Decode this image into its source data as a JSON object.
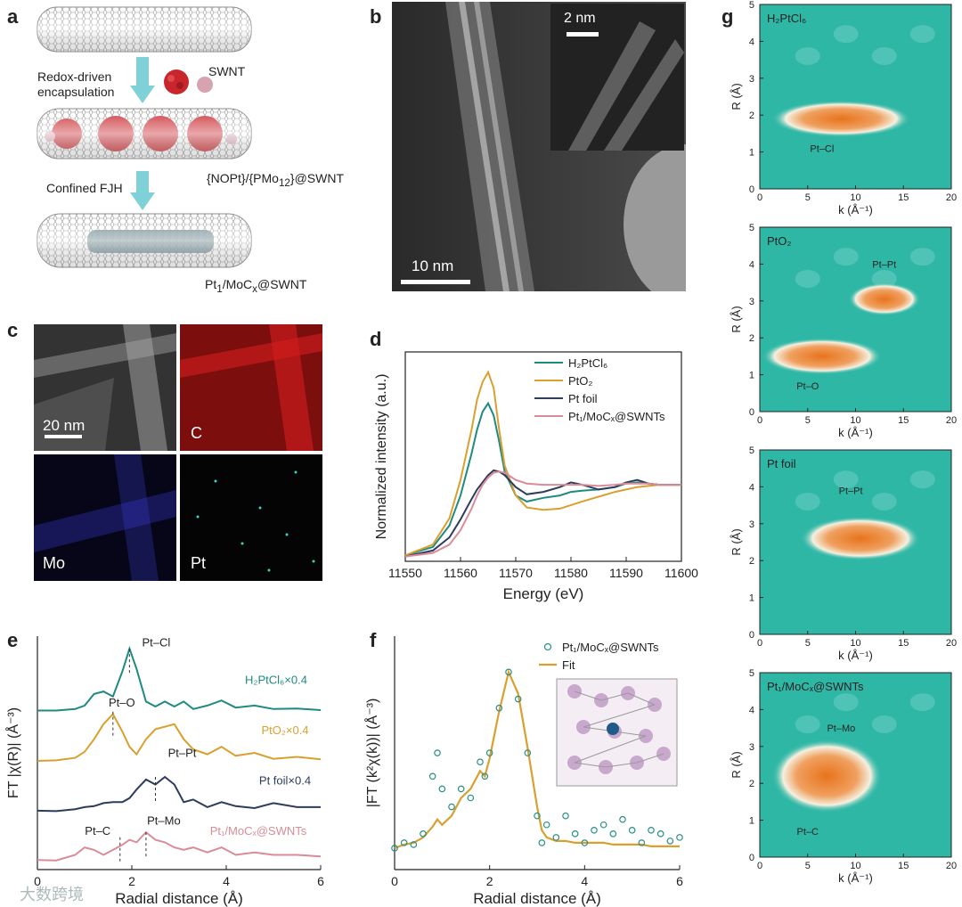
{
  "panel_labels": {
    "a": "a",
    "b": "b",
    "c": "c",
    "d": "d",
    "e": "e",
    "f": "f",
    "g": "g"
  },
  "colors": {
    "teal": "#1f8a80",
    "orange": "#d9a030",
    "navy": "#2d3c5c",
    "pink": "#d98c98",
    "heat_bg": "#2fb7a6",
    "heat_hot": "#e8731c"
  },
  "panel_a": {
    "step1": "Redox-driven\nencapsulation",
    "swnt_label": "SWNT",
    "mid_label": "{NOPt}/{PMo12}@SWNT",
    "step2": "Confined FJH",
    "final_label": "Pt1/MoCx@SWNT"
  },
  "panel_b": {
    "scale_main": "10 nm",
    "scale_inset": "2 nm"
  },
  "panel_c": {
    "scale": "20 nm",
    "maps": [
      "C",
      "Mo",
      "Pt"
    ]
  },
  "watermark": "大数跨境",
  "chart_data": [
    {
      "id": "d",
      "type": "line",
      "title": "",
      "xlabel": "Energy (eV)",
      "ylabel": "Normalized intensity (a.u.)",
      "xlim": [
        11550,
        11600
      ],
      "xticks": [
        11550,
        11560,
        11570,
        11580,
        11590,
        11600
      ],
      "x": [
        11550,
        11555,
        11558,
        11560,
        11562,
        11563,
        11564,
        11565,
        11566,
        11567,
        11568,
        11570,
        11572,
        11575,
        11578,
        11580,
        11582,
        11585,
        11588,
        11590,
        11592,
        11594,
        11596,
        11600
      ],
      "series": [
        {
          "name": "H2PtCl6",
          "legend": "H₂PtCl₆",
          "color": "#1f8a80",
          "values": [
            0.05,
            0.12,
            0.3,
            0.55,
            0.9,
            1.1,
            1.25,
            1.32,
            1.22,
            1.0,
            0.75,
            0.55,
            0.5,
            0.53,
            0.55,
            0.58,
            0.59,
            0.6,
            0.62,
            0.65,
            0.66,
            0.65,
            0.64,
            0.64
          ]
        },
        {
          "name": "PtO2",
          "legend": "PtO₂",
          "color": "#d9a030",
          "values": [
            0.05,
            0.14,
            0.36,
            0.68,
            1.1,
            1.35,
            1.5,
            1.58,
            1.45,
            1.1,
            0.8,
            0.55,
            0.45,
            0.43,
            0.44,
            0.47,
            0.5,
            0.54,
            0.58,
            0.6,
            0.62,
            0.63,
            0.64,
            0.64
          ]
        },
        {
          "name": "Pt foil",
          "legend": "Pt foil",
          "color": "#2d3c5c",
          "values": [
            0.04,
            0.09,
            0.2,
            0.35,
            0.52,
            0.6,
            0.66,
            0.72,
            0.76,
            0.75,
            0.72,
            0.62,
            0.56,
            0.58,
            0.62,
            0.66,
            0.64,
            0.6,
            0.62,
            0.66,
            0.68,
            0.65,
            0.64,
            0.64
          ]
        },
        {
          "name": "Pt1/MoCx@SWNTs",
          "legend": "Pt₁/MoCₓ@SWNTs",
          "color": "#d98c98",
          "values": [
            0.04,
            0.07,
            0.14,
            0.26,
            0.44,
            0.55,
            0.64,
            0.7,
            0.74,
            0.75,
            0.74,
            0.68,
            0.65,
            0.64,
            0.64,
            0.64,
            0.64,
            0.63,
            0.64,
            0.65,
            0.65,
            0.65,
            0.64,
            0.64
          ]
        }
      ]
    },
    {
      "id": "e",
      "type": "line",
      "xlabel": "Radial distance (Å)",
      "ylabel": "FT |χ(R)| (Å⁻³)",
      "xlim": [
        0,
        6
      ],
      "xticks": [
        0,
        2,
        4,
        6
      ],
      "x": [
        0,
        0.4,
        0.8,
        1.0,
        1.2,
        1.4,
        1.6,
        1.8,
        1.95,
        2.1,
        2.3,
        2.5,
        2.7,
        2.9,
        3.1,
        3.3,
        3.6,
        3.9,
        4.2,
        4.6,
        5.0,
        5.5,
        6.0
      ],
      "series": [
        {
          "name": "H2PtCl6×0.4",
          "legend": "H₂PtCl₆×0.4",
          "color": "#1f8a80",
          "offset": 3.0,
          "values": [
            0.02,
            0.02,
            0.05,
            0.12,
            0.35,
            0.4,
            0.3,
            0.8,
            1.25,
            0.85,
            0.2,
            0.1,
            0.2,
            0.1,
            0.2,
            0.05,
            0.12,
            0.22,
            0.08,
            0.12,
            0.05,
            0.06,
            0.03
          ]
        },
        {
          "name": "PtO2×0.4",
          "legend": "PtO₂×0.4",
          "color": "#d9a030",
          "offset": 2.0,
          "values": [
            0.02,
            0.03,
            0.08,
            0.2,
            0.45,
            0.75,
            0.95,
            0.6,
            0.3,
            0.15,
            0.45,
            0.65,
            0.7,
            0.75,
            0.45,
            0.25,
            0.15,
            0.3,
            0.12,
            0.18,
            0.06,
            0.1,
            0.05
          ]
        },
        {
          "name": "Pt foil×0.4",
          "legend": "Pt foil×0.4",
          "color": "#2d3c5c",
          "offset": 1.0,
          "values": [
            0.03,
            0.02,
            0.06,
            0.1,
            0.12,
            0.18,
            0.2,
            0.2,
            0.28,
            0.45,
            0.65,
            0.55,
            0.7,
            0.55,
            0.2,
            0.25,
            0.1,
            0.2,
            0.12,
            0.08,
            0.18,
            0.1,
            0.1
          ]
        },
        {
          "name": "Pt1/MoCx@SWNTs",
          "legend": "Pt₁/MoCₓ@SWNTs",
          "color": "#d98c98",
          "offset": 0.0,
          "values": [
            0.05,
            0.04,
            0.15,
            0.3,
            0.25,
            0.15,
            0.25,
            0.35,
            0.45,
            0.4,
            0.6,
            0.45,
            0.4,
            0.3,
            0.25,
            0.3,
            0.2,
            0.3,
            0.15,
            0.2,
            0.15,
            0.15,
            0.12
          ]
        }
      ],
      "annotations": [
        {
          "text": "Pt–Cl",
          "x": 1.95
        },
        {
          "text": "Pt–O",
          "x": 1.6
        },
        {
          "text": "Pt–Pt",
          "x": 2.5
        },
        {
          "text": "Pt–C",
          "x": 1.75
        },
        {
          "text": "Pt–Mo",
          "x": 2.3
        }
      ]
    },
    {
      "id": "f",
      "type": "scatter",
      "xlabel": "Radial distance (Å)",
      "ylabel": "|FT (k²χ(k))| (Å⁻³)",
      "xlim": [
        0,
        6
      ],
      "xticks": [
        0,
        2,
        4,
        6
      ],
      "legend": [
        "Pt₁/MoCₓ@SWNTs",
        "Fit"
      ],
      "x": [
        0,
        0.2,
        0.4,
        0.6,
        0.8,
        0.9,
        1.0,
        1.2,
        1.4,
        1.6,
        1.8,
        1.9,
        2.0,
        2.2,
        2.4,
        2.6,
        2.8,
        3.0,
        3.1,
        3.2,
        3.4,
        3.6,
        3.8,
        4.0,
        4.2,
        4.4,
        4.6,
        4.8,
        5.0,
        5.2,
        5.4,
        5.6,
        5.8,
        6.0
      ],
      "data": [
        0.02,
        0.05,
        0.04,
        0.1,
        0.42,
        0.55,
        0.35,
        0.25,
        0.35,
        0.3,
        0.5,
        0.42,
        0.55,
        0.8,
        1.0,
        0.85,
        0.55,
        0.2,
        0.05,
        0.15,
        0.08,
        0.2,
        0.1,
        0.05,
        0.12,
        0.15,
        0.1,
        0.18,
        0.12,
        0.05,
        0.12,
        0.1,
        0.06,
        0.08
      ],
      "fit": [
        0.02,
        0.04,
        0.05,
        0.08,
        0.14,
        0.18,
        0.15,
        0.2,
        0.3,
        0.35,
        0.45,
        0.42,
        0.52,
        0.78,
        1.0,
        0.88,
        0.58,
        0.25,
        0.12,
        0.08,
        0.06,
        0.06,
        0.05,
        0.05,
        0.05,
        0.05,
        0.04,
        0.04,
        0.04,
        0.04,
        0.03,
        0.03,
        0.03,
        0.03
      ]
    },
    {
      "id": "g",
      "type": "heatmap",
      "xlabel": "k (Å⁻¹)",
      "ylabel": "R (Å)",
      "xlim": [
        0,
        20
      ],
      "ylim": [
        0,
        5
      ],
      "xticks": [
        0,
        5,
        10,
        15,
        20
      ],
      "yticks": [
        0,
        1,
        2,
        3,
        4,
        5
      ],
      "panels": [
        {
          "name": "H₂PtCl₆",
          "blobs": [
            {
              "k": [
                2,
                15
              ],
              "r": [
                1.6,
                2.2
              ]
            }
          ],
          "labels": [
            {
              "text": "Pt–Cl",
              "k": 6.5,
              "r": 1.0
            }
          ]
        },
        {
          "name": "PtO₂",
          "blobs": [
            {
              "k": [
                1,
                12
              ],
              "r": [
                1.2,
                1.8
              ]
            },
            {
              "k": [
                10,
                16
              ],
              "r": [
                2.8,
                3.3
              ]
            }
          ],
          "labels": [
            {
              "text": "Pt–O",
              "k": 5,
              "r": 0.6
            },
            {
              "text": "Pt–Pt",
              "k": 13,
              "r": 3.9
            }
          ]
        },
        {
          "name": "Pt foil",
          "blobs": [
            {
              "k": [
                5,
                16
              ],
              "r": [
                2.2,
                3.0
              ]
            }
          ],
          "labels": [
            {
              "text": "Pt–Pt",
              "k": 9.5,
              "r": 3.8
            }
          ]
        },
        {
          "name": "Pt₁/MoCₓ@SWNTs",
          "blobs": [
            {
              "k": [
                2,
                12
              ],
              "r": [
                1.4,
                3.0
              ]
            }
          ],
          "labels": [
            {
              "text": "Pt–Mo",
              "k": 8.5,
              "r": 3.4
            },
            {
              "text": "Pt–C",
              "k": 5,
              "r": 0.6
            }
          ]
        }
      ]
    }
  ]
}
